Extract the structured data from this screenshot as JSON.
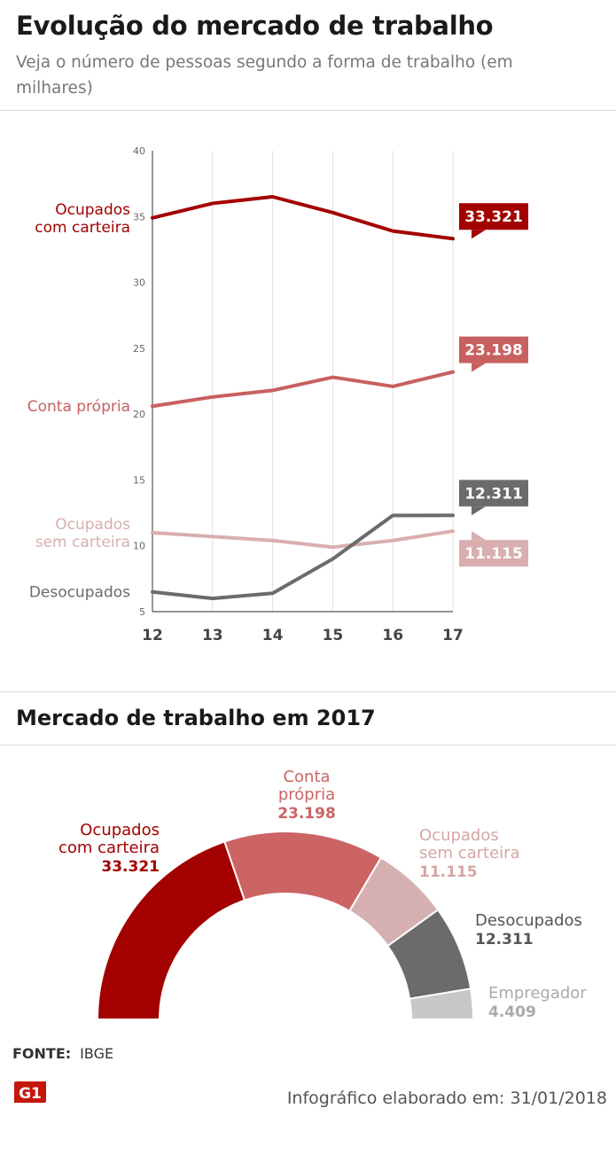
{
  "header": {
    "title": "Evolução do mercado de trabalho",
    "subtitle": "Veja o número de pessoas segundo a forma de trabalho (em milhares)"
  },
  "chart_data": [
    {
      "type": "line",
      "x": [
        12,
        13,
        14,
        15,
        16,
        17
      ],
      "xlabels": [
        "12",
        "13",
        "14",
        "15",
        "16",
        "17"
      ],
      "yticks": [
        "5",
        "10",
        "15",
        "20",
        "25",
        "30",
        "35",
        "40"
      ],
      "ylim": [
        5,
        40
      ],
      "grid": "vertical",
      "series": [
        {
          "name": "Ocupados com carteira",
          "label_lines": [
            "Ocupados",
            "com carteira"
          ],
          "color": "#a30000",
          "values": [
            34.9,
            36.0,
            36.5,
            35.3,
            33.9,
            33.321
          ],
          "end_label": "33.321",
          "label_color": "#ffffff",
          "tag_y": 33.321,
          "tag_side": "above"
        },
        {
          "name": "Conta própria",
          "label_lines": [
            "Conta própria"
          ],
          "color": "#c86060",
          "values": [
            20.6,
            21.3,
            21.8,
            22.8,
            22.1,
            23.198
          ],
          "end_label": "23.198",
          "label_color": "#ffffff",
          "tag_y": 23.198,
          "tag_side": "above"
        },
        {
          "name": "Ocupados sem carteira",
          "label_lines": [
            "Ocupados",
            "sem carteira"
          ],
          "color": "#d9aeae",
          "values": [
            11.0,
            10.7,
            10.4,
            9.9,
            10.4,
            11.115
          ],
          "end_label": "11.115",
          "label_color": "#ffffff",
          "tag_y": 11.115,
          "tag_side": "below"
        },
        {
          "name": "Desocupados",
          "label_lines": [
            "Desocupados"
          ],
          "color": "#6b6b6b",
          "values": [
            6.5,
            6.0,
            6.4,
            9.0,
            12.3,
            12.311
          ],
          "end_label": "12.311",
          "label_color": "#ffffff",
          "tag_y": 12.311,
          "tag_side": "above"
        }
      ]
    },
    {
      "type": "pie",
      "title": "Mercado de trabalho em 2017",
      "style": "half-donut",
      "slices": [
        {
          "label_lines": [
            "Ocupados",
            "com carteira"
          ],
          "value": 33.321,
          "value_label": "33.321",
          "color": "#a30000",
          "text_color": "#a30000"
        },
        {
          "label_lines": [
            "Conta",
            "própria"
          ],
          "value": 23.198,
          "value_label": "23.198",
          "color": "#cc6464",
          "text_color": "#cc6464"
        },
        {
          "label_lines": [
            "Ocupados",
            "sem carteira"
          ],
          "value": 11.115,
          "value_label": "11.115",
          "color": "#d6b0b0",
          "text_color": "#d6a5a5"
        },
        {
          "label_lines": [
            "Desocupados"
          ],
          "value": 12.311,
          "value_label": "12.311",
          "color": "#6b6b6b",
          "text_color": "#555555"
        },
        {
          "label_lines": [
            "Empregador"
          ],
          "value": 4.409,
          "value_label": "4.409",
          "color": "#c8c8c8",
          "text_color": "#aaaaaa"
        }
      ]
    }
  ],
  "footer": {
    "fonte_label": "FONTE:",
    "fonte_value": "IBGE",
    "logo_text": "G1",
    "credit": "Infográfico elaborado em: 31/01/2018"
  }
}
